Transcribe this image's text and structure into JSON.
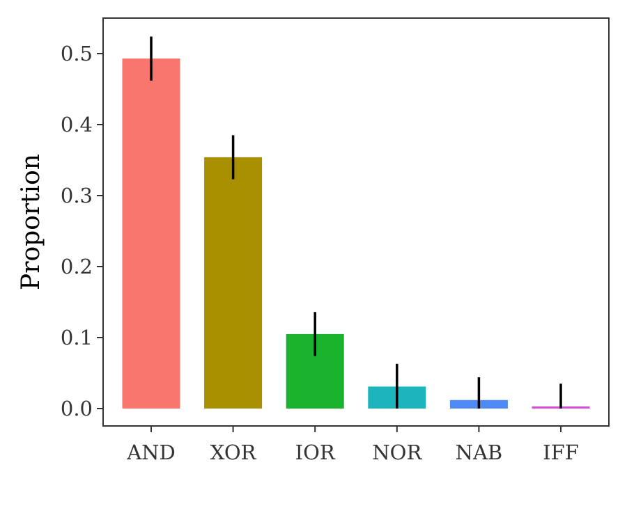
{
  "chart_data": {
    "type": "bar",
    "title": "",
    "xlabel": "",
    "ylabel": "Proportion",
    "categories": [
      "AND",
      "XOR",
      "IOR",
      "NOR",
      "NAB",
      "IFF"
    ],
    "values": [
      0.493,
      0.354,
      0.105,
      0.031,
      0.012,
      0.003
    ],
    "error_bars": [
      [
        0.462,
        0.524
      ],
      [
        0.323,
        0.385
      ],
      [
        0.074,
        0.136
      ],
      [
        0.0,
        0.063
      ],
      [
        0.0,
        0.044
      ],
      [
        0.0,
        0.035
      ]
    ],
    "colors": [
      "#F8766D",
      "#A89000",
      "#1BB22E",
      "#1CB5BE",
      "#4F89F5",
      "#D64ED8"
    ],
    "yticks": [
      "0.0",
      "0.1",
      "0.2",
      "0.3",
      "0.4",
      "0.5"
    ],
    "ytick_values": [
      0.0,
      0.1,
      0.2,
      0.3,
      0.4,
      0.5
    ],
    "ylim": [
      -0.025,
      0.55
    ],
    "grid": false,
    "legend": "none",
    "frame_color": "#333333",
    "errorbar_color": "#000000"
  }
}
